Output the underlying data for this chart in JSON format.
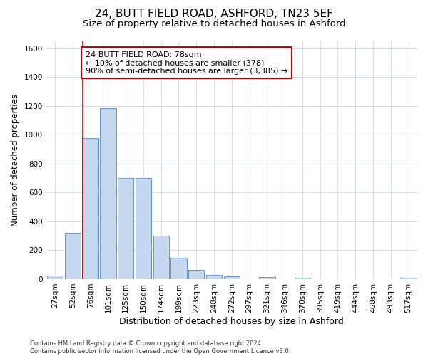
{
  "title_line1": "24, BUTT FIELD ROAD, ASHFORD, TN23 5EF",
  "title_line2": "Size of property relative to detached houses in Ashford",
  "xlabel": "Distribution of detached houses by size in Ashford",
  "ylabel": "Number of detached properties",
  "categories": [
    "27sqm",
    "52sqm",
    "76sqm",
    "101sqm",
    "125sqm",
    "150sqm",
    "174sqm",
    "199sqm",
    "223sqm",
    "248sqm",
    "272sqm",
    "297sqm",
    "321sqm",
    "346sqm",
    "370sqm",
    "395sqm",
    "419sqm",
    "444sqm",
    "468sqm",
    "493sqm",
    "517sqm"
  ],
  "values": [
    25,
    320,
    975,
    1185,
    700,
    700,
    300,
    150,
    65,
    30,
    20,
    0,
    15,
    0,
    10,
    0,
    0,
    0,
    0,
    0,
    10
  ],
  "bar_color": "#c5d8ef",
  "bar_edge_color": "#6699cc",
  "background_color": "#ffffff",
  "grid_color": "#d0d8e8",
  "vline_color": "#cc0000",
  "vline_x_idx": 2,
  "annotation_text": "24 BUTT FIELD ROAD: 78sqm\n← 10% of detached houses are smaller (378)\n90% of semi-detached houses are larger (3,385) →",
  "annotation_box_color": "#ffffff",
  "annotation_box_edge": "#cc0000",
  "ylim": [
    0,
    1650
  ],
  "yticks": [
    0,
    200,
    400,
    600,
    800,
    1000,
    1200,
    1400,
    1600
  ],
  "footnote": "Contains HM Land Registry data © Crown copyright and database right 2024.\nContains public sector information licensed under the Open Government Licence v3.0.",
  "title_fontsize": 11,
  "subtitle_fontsize": 9.5,
  "tick_fontsize": 7.5,
  "ylabel_fontsize": 8.5,
  "xlabel_fontsize": 9,
  "annot_fontsize": 8,
  "footnote_fontsize": 6
}
